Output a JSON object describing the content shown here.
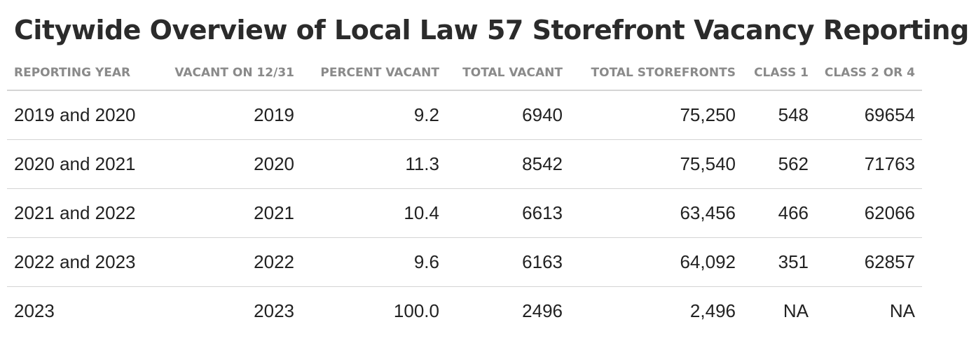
{
  "title": "Citywide Overview of Local Law 57 Storefront Vacancy Reporting",
  "chart_data": {
    "type": "table",
    "title": "Citywide Overview of Local Law 57 Storefront Vacancy Reporting",
    "columns": [
      "REPORTING YEAR",
      "VACANT ON 12/31",
      "PERCENT VACANT",
      "TOTAL VACANT",
      "TOTAL STOREFRONTS",
      "CLASS 1",
      "CLASS 2 OR 4"
    ],
    "rows": [
      [
        "2019 and 2020",
        "2019",
        "9.2",
        "6940",
        "75,250",
        "548",
        "69654"
      ],
      [
        "2020 and 2021",
        "2020",
        "11.3",
        "8542",
        "75,540",
        "562",
        "71763"
      ],
      [
        "2021 and 2022",
        "2021",
        "10.4",
        "6613",
        "63,456",
        "466",
        "62066"
      ],
      [
        "2022 and 2023",
        "2022",
        "9.6",
        "6163",
        "64,092",
        "351",
        "62857"
      ],
      [
        "2023",
        "2023",
        "100.0",
        "2496",
        "2,496",
        "NA",
        "NA"
      ]
    ]
  }
}
